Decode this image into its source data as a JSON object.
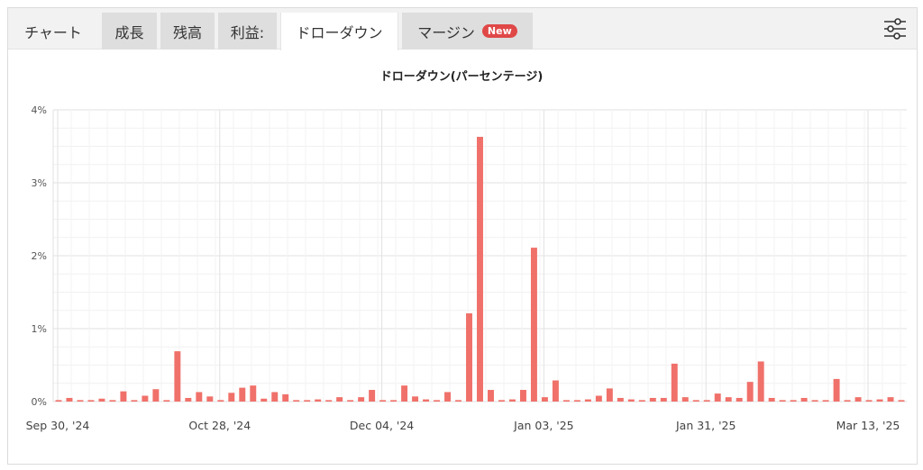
{
  "tabs": [
    {
      "label": "チャート",
      "badge": ""
    },
    {
      "label": "成長",
      "badge": ""
    },
    {
      "label": "残高",
      "badge": ""
    },
    {
      "label": "利益:",
      "badge": ""
    },
    {
      "label": "ドローダウン",
      "badge": ""
    },
    {
      "label": "マージン",
      "badge": "New"
    }
  ],
  "active_tab": "ドローダウン",
  "settings_icon": "sliders-icon",
  "colors": {
    "bar": "#f0716a",
    "badge": "#e04848"
  },
  "chart_data": {
    "type": "bar",
    "title": "ドローダウン(パーセンテージ)",
    "xlabel": "",
    "ylabel": "",
    "ylim": [
      0,
      4
    ],
    "yticks": [
      "0%",
      "1%",
      "2%",
      "3%",
      "4%"
    ],
    "xtick_labels": [
      "Sep 30, '24",
      "Oct 28, '24",
      "Dec 04, '24",
      "Jan 03, '25",
      "Jan 31, '25",
      "Mar 13, '25"
    ],
    "grid": true,
    "values": [
      0.02,
      0.05,
      0.02,
      0.02,
      0.04,
      0.02,
      0.14,
      0.02,
      0.08,
      0.17,
      0.02,
      0.69,
      0.05,
      0.13,
      0.07,
      0.02,
      0.12,
      0.19,
      0.22,
      0.04,
      0.13,
      0.1,
      0.02,
      0.02,
      0.03,
      0.02,
      0.06,
      0.02,
      0.06,
      0.16,
      0.02,
      0.02,
      0.22,
      0.07,
      0.03,
      0.02,
      0.13,
      0.02,
      1.21,
      3.63,
      0.16,
      0.02,
      0.03,
      0.16,
      2.11,
      0.06,
      0.29,
      0.02,
      0.02,
      0.03,
      0.08,
      0.18,
      0.05,
      0.03,
      0.02,
      0.05,
      0.05,
      0.52,
      0.06,
      0.02,
      0.02,
      0.11,
      0.06,
      0.05,
      0.27,
      0.55,
      0.05,
      0.02,
      0.02,
      0.05,
      0.02,
      0.02,
      0.31,
      0.02,
      0.06,
      0.02,
      0.03,
      0.06,
      0.02
    ]
  }
}
